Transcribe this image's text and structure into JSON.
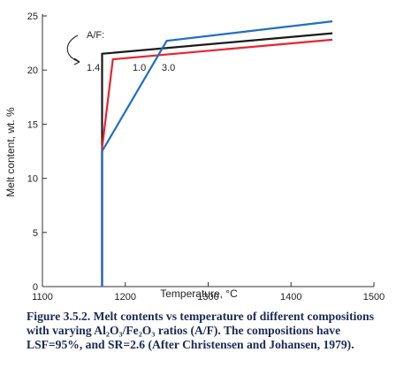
{
  "chart_data": {
    "type": "line",
    "xlabel": "Temperature, °C",
    "ylabel": "Melt content, wt. %",
    "xlim": [
      1100,
      1500
    ],
    "ylim": [
      0,
      25
    ],
    "x_ticks": [
      "1100",
      "1200",
      "1300",
      "1400",
      "1500"
    ],
    "y_ticks": [
      "0",
      "5",
      "10",
      "15",
      "20",
      "25"
    ],
    "annotation_title": "A/F:",
    "series": [
      {
        "name": "1.4",
        "color": "#1a1a1a",
        "points": [
          [
            1172,
            0
          ],
          [
            1172,
            21.5
          ],
          [
            1450,
            23.4
          ]
        ]
      },
      {
        "name": "1.0",
        "color": "#e8242e",
        "points": [
          [
            1172,
            0
          ],
          [
            1172,
            12.8
          ],
          [
            1185,
            21.0
          ],
          [
            1450,
            22.8
          ]
        ]
      },
      {
        "name": "3.0",
        "color": "#1e6fc0",
        "points": [
          [
            1172,
            0
          ],
          [
            1172,
            12.5
          ],
          [
            1250,
            22.7
          ],
          [
            1450,
            24.5
          ]
        ]
      }
    ]
  },
  "caption": {
    "lines": [
      "Figure 3.5.2. Melt contents vs temperature of different compositions",
      "with varying Al₂O₃/Fe₂O₃ ratios (A/F). The compositions have",
      "LSF=95%, and SR=2.6 (After Christensen and Johansen, 1979)."
    ]
  }
}
